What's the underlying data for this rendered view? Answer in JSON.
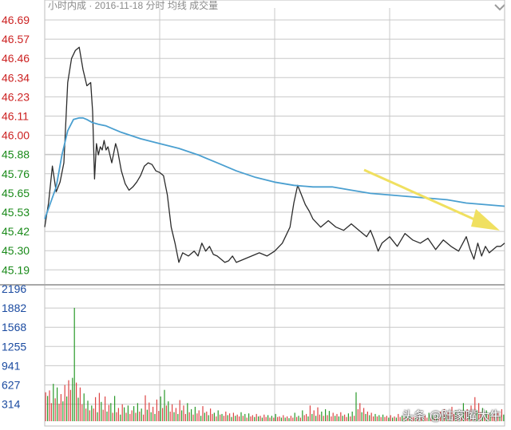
{
  "header": {
    "title": "小时内成 · 2016-11-18 分时 均线 成交量",
    "menu_icon": "chevron-down-icon"
  },
  "watermark": "头条 @陆家嘴大牛",
  "colors": {
    "price_line": "#2b2b2b",
    "avg_line": "#4a9fd0",
    "up_label": "#cc2222",
    "down_label": "#1a8a1a",
    "vol_up": "#dd4444",
    "vol_down": "#2a9a2a",
    "arrow": "#f0e060",
    "grid": "#c8c8c8"
  },
  "chart_data": [
    {
      "type": "line",
      "panel": "price",
      "y_ticks": [
        "46.69",
        "46.57",
        "46.46",
        "46.34",
        "46.23",
        "46.11",
        "46.00",
        "45.88",
        "45.76",
        "45.65",
        "45.53",
        "45.42",
        "45.30",
        "45.19"
      ],
      "ylim": [
        45.13,
        46.69
      ],
      "xlim": [
        0,
        240
      ],
      "grid": true,
      "series": [
        {
          "key": "price",
          "x": [
            0,
            2,
            4,
            5,
            6,
            8,
            10,
            12,
            14,
            16,
            18,
            20,
            22,
            24,
            25,
            26,
            27,
            28,
            29,
            30,
            31,
            32,
            33,
            35,
            37,
            38,
            40,
            42,
            44,
            46,
            48,
            50,
            52,
            54,
            56,
            58,
            60,
            62,
            64,
            66,
            68,
            70,
            72,
            75,
            78,
            80,
            82,
            84,
            86,
            88,
            90,
            92,
            94,
            96,
            98,
            100,
            104,
            108,
            112,
            116,
            120,
            124,
            128,
            130,
            132,
            134,
            136,
            138,
            140,
            144,
            148,
            152,
            156,
            160,
            164,
            166,
            168,
            170,
            172,
            174,
            176,
            180,
            184,
            188,
            192,
            196,
            200,
            204,
            208,
            212,
            216,
            220,
            222,
            224,
            226,
            228,
            230,
            232,
            234,
            236,
            238,
            240
          ],
          "y": [
            45.4,
            45.55,
            45.78,
            45.7,
            45.62,
            45.68,
            45.8,
            46.3,
            46.45,
            46.5,
            46.52,
            46.38,
            46.28,
            46.3,
            46.12,
            45.7,
            45.92,
            45.85,
            45.9,
            45.88,
            45.94,
            45.88,
            45.9,
            45.8,
            45.92,
            45.88,
            45.75,
            45.67,
            45.63,
            45.65,
            45.68,
            45.72,
            45.78,
            45.8,
            45.79,
            45.75,
            45.74,
            45.72,
            45.6,
            45.4,
            45.3,
            45.18,
            45.24,
            45.22,
            45.25,
            45.22,
            45.3,
            45.25,
            45.28,
            45.23,
            45.22,
            45.2,
            45.18,
            45.19,
            45.22,
            45.18,
            45.2,
            45.22,
            45.24,
            45.22,
            45.25,
            45.3,
            45.4,
            45.55,
            45.66,
            45.6,
            45.54,
            45.5,
            45.45,
            45.4,
            45.44,
            45.4,
            45.38,
            45.42,
            45.38,
            45.36,
            45.34,
            45.38,
            45.32,
            45.25,
            45.3,
            45.34,
            45.28,
            45.36,
            45.32,
            45.3,
            45.33,
            45.26,
            45.32,
            45.28,
            45.25,
            45.34,
            45.26,
            45.2,
            45.3,
            45.22,
            45.28,
            45.24,
            45.26,
            45.28,
            45.28,
            45.3
          ]
        },
        {
          "key": "average",
          "x": [
            0,
            3,
            6,
            9,
            12,
            15,
            18,
            20,
            22,
            25,
            28,
            32,
            36,
            40,
            45,
            50,
            60,
            70,
            80,
            90,
            100,
            110,
            120,
            130,
            140,
            150,
            160,
            170,
            180,
            190,
            200,
            210,
            220,
            230,
            240
          ],
          "y": [
            45.45,
            45.55,
            45.65,
            45.85,
            46.0,
            46.07,
            46.08,
            46.08,
            46.07,
            46.05,
            46.04,
            46.03,
            46.01,
            45.99,
            45.97,
            45.95,
            45.92,
            45.89,
            45.85,
            45.8,
            45.75,
            45.71,
            45.68,
            45.66,
            45.65,
            45.65,
            45.63,
            45.61,
            45.6,
            45.59,
            45.58,
            45.57,
            45.55,
            45.54,
            45.53
          ]
        }
      ]
    },
    {
      "type": "bar",
      "panel": "volume",
      "y_ticks": [
        "2196",
        "1882",
        "1568",
        "1255",
        "941",
        "627",
        "314"
      ],
      "ylim": [
        0,
        2196
      ],
      "grid": true,
      "values": [
        480,
        420,
        510,
        300,
        620,
        380,
        560,
        290,
        450,
        330,
        600,
        410,
        680,
        520,
        720,
        1880,
        640,
        390,
        560,
        280,
        460,
        210,
        340,
        180,
        260,
        210,
        400,
        150,
        470,
        320,
        190,
        410,
        160,
        270,
        300,
        140,
        420,
        150,
        220,
        110,
        280,
        230,
        140,
        260,
        120,
        180,
        250,
        140,
        300,
        160,
        210,
        110,
        430,
        190,
        310,
        150,
        240,
        120,
        360,
        170,
        410,
        220,
        520,
        260,
        330,
        160,
        280,
        150,
        220,
        120,
        350,
        180,
        260,
        120,
        300,
        150,
        200,
        110,
        240,
        130,
        180,
        90,
        250,
        140,
        160,
        100,
        210,
        120,
        140,
        80,
        180,
        110,
        120,
        90,
        160,
        100,
        130,
        70,
        140,
        90,
        110,
        80,
        150,
        90,
        120,
        60,
        130,
        80,
        100,
        70,
        120,
        80,
        90,
        60,
        110,
        70,
        100,
        60,
        90,
        60,
        120,
        70,
        80,
        60,
        100,
        60,
        80,
        50,
        90,
        60,
        140,
        70,
        90,
        60,
        180,
        100,
        120,
        80,
        260,
        120,
        180,
        90,
        230,
        110,
        160,
        90,
        200,
        100,
        170,
        80,
        140,
        90,
        120,
        80,
        150,
        90,
        110,
        70,
        130,
        80,
        160,
        90,
        480,
        200,
        300,
        150,
        220,
        120,
        160,
        100,
        140,
        80,
        120,
        80,
        100,
        70,
        110,
        70,
        90,
        60,
        100,
        60,
        80,
        60,
        120,
        70,
        90,
        60,
        80,
        50,
        100,
        60,
        70,
        50,
        90,
        60,
        80,
        50,
        100,
        60,
        140,
        80,
        100,
        70,
        120,
        70,
        160,
        90,
        200,
        110,
        160,
        100,
        240,
        120,
        180,
        100,
        150,
        90,
        300,
        160,
        200,
        120,
        260,
        140,
        400,
        180,
        300,
        150,
        220,
        120,
        180,
        110,
        140,
        90,
        120,
        80,
        160,
        90,
        200,
        110
      ],
      "up": [
        1,
        0,
        1,
        1,
        0,
        1,
        0,
        1,
        1,
        0,
        1,
        0,
        1,
        1,
        0,
        0,
        1,
        0,
        1,
        1,
        0,
        1,
        0,
        1,
        0,
        1,
        1,
        0,
        1,
        0,
        1,
        1,
        0,
        1,
        0,
        1,
        0,
        1,
        1,
        0,
        1,
        0,
        1,
        0,
        1,
        1,
        0,
        1,
        0,
        1,
        0,
        1,
        1,
        0,
        1,
        0,
        1,
        0,
        1,
        1,
        0,
        1,
        0,
        1,
        0,
        1,
        1,
        0,
        1,
        0,
        1,
        0,
        1,
        1,
        0,
        1,
        0,
        1,
        0,
        1,
        1,
        0,
        1,
        0,
        1,
        0,
        1,
        1,
        0,
        1,
        0,
        1,
        0,
        1,
        1,
        0,
        1,
        0,
        1,
        0,
        1,
        1,
        0,
        1,
        0,
        1,
        0,
        1,
        1,
        0,
        1,
        0,
        1,
        0,
        1,
        1,
        0,
        1,
        0,
        1,
        0,
        1,
        1,
        0,
        1,
        0,
        1,
        0,
        1,
        1,
        0,
        1,
        0,
        1,
        0,
        1,
        1,
        0,
        1,
        0,
        1,
        0,
        1,
        1,
        0,
        1,
        0,
        1,
        0,
        1,
        1,
        0,
        1,
        0,
        1,
        0,
        1,
        1,
        0,
        1,
        0,
        1,
        0,
        1,
        1,
        0,
        1,
        0,
        1,
        0,
        1,
        1,
        0,
        1,
        0,
        1,
        0,
        1,
        1,
        0,
        1,
        0,
        1,
        0,
        1,
        1,
        0,
        1,
        0,
        1,
        0,
        1,
        1,
        0,
        1,
        0,
        1,
        0,
        1,
        1,
        0,
        1,
        0,
        1,
        0,
        1,
        1,
        0,
        1,
        0,
        1,
        0,
        1,
        1,
        0,
        1,
        0,
        1,
        0,
        1,
        1,
        0,
        1,
        0,
        1,
        0,
        1,
        1,
        0,
        1,
        0,
        1,
        0,
        1,
        1,
        0,
        1,
        0,
        1,
        0,
        1,
        1,
        0,
        1,
        0,
        1
      ]
    }
  ]
}
